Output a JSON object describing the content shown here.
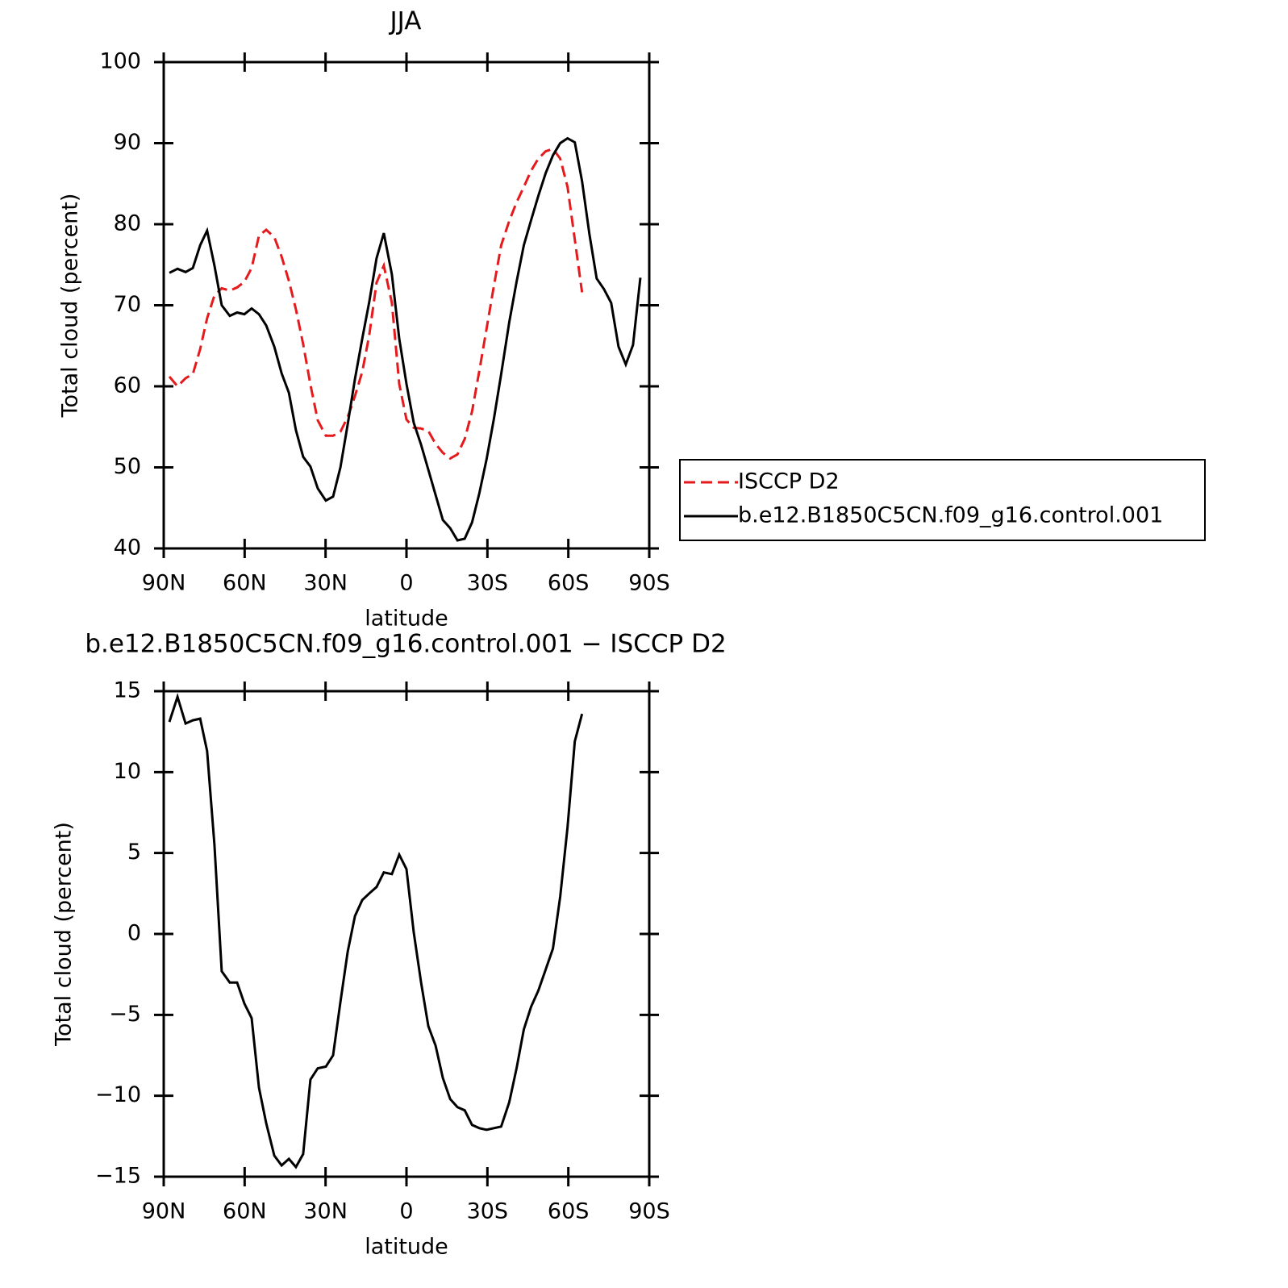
{
  "chart_data": [
    {
      "type": "line",
      "title": "JJA",
      "x_label": "latitude",
      "y_label": "Total cloud (percent)",
      "xlim": [
        90,
        -90
      ],
      "xticks": [
        {
          "value": 90,
          "label": "90N"
        },
        {
          "value": 60,
          "label": "60N"
        },
        {
          "value": 30,
          "label": "30N"
        },
        0,
        {
          "value": -30,
          "label": "30S"
        },
        {
          "value": -60,
          "label": "60S"
        },
        {
          "value": -90,
          "label": "90S"
        }
      ],
      "ylim": [
        40,
        100
      ],
      "yticks": [
        40,
        50,
        60,
        70,
        80,
        90,
        100
      ],
      "legend": "right",
      "x": [
        87.9,
        84.9,
        81.9,
        79.2,
        76.5,
        73.9,
        71.2,
        68.5,
        65.5,
        62.8,
        60.1,
        57.4,
        54.7,
        52.0,
        49.0,
        46.3,
        43.6,
        41.0,
        38.3,
        35.6,
        32.9,
        29.9,
        27.2,
        24.5,
        21.8,
        19.1,
        16.4,
        13.8,
        11.1,
        8.4,
        5.4,
        2.7,
        0.0,
        -2.7,
        -5.4,
        -8.1,
        -10.8,
        -13.5,
        -16.2,
        -18.9,
        -21.6,
        -24.3,
        -27.0,
        -29.7,
        -32.4,
        -35.1,
        -38.1,
        -40.8,
        -43.5,
        -46.2,
        -48.9,
        -51.6,
        -54.3,
        -57.0,
        -59.7,
        -62.4,
        -65.1,
        -67.8,
        -70.5,
        -73.2,
        -75.9,
        -78.6,
        -81.3,
        -84.0,
        -86.7
      ],
      "series": [
        {
          "name": "ISCCP D2",
          "color": "#e41a1c",
          "dashed": true,
          "values": [
            61.2,
            60.0,
            61.0,
            61.5,
            64.6,
            68.4,
            71.2,
            72.1,
            71.8,
            72.2,
            72.9,
            74.6,
            78.6,
            79.3,
            78.4,
            76.0,
            73.0,
            69.5,
            65.2,
            60.2,
            55.8,
            53.9,
            53.9,
            54.4,
            56.2,
            58.8,
            61.8,
            66.3,
            72.8,
            74.9,
            70.3,
            60.3,
            55.9,
            54.9,
            54.8,
            54.5,
            52.9,
            51.8,
            51.1,
            51.6,
            53.5,
            56.9,
            61.9,
            67.1,
            72.4,
            77.4,
            80.4,
            82.7,
            84.6,
            86.6,
            88.1,
            89.0,
            89.3,
            88.1,
            84.6,
            78.1,
            71.6,
            null,
            null,
            null,
            null,
            null,
            null,
            null,
            null
          ]
        },
        {
          "name": "b.e12.B1850C5CN.f09_g16.control.001",
          "color": "#000000",
          "dashed": false,
          "values": [
            74.0,
            74.5,
            74.1,
            74.6,
            77.4,
            79.2,
            74.9,
            70.0,
            68.7,
            69.1,
            68.9,
            69.6,
            68.9,
            67.5,
            64.9,
            61.6,
            59.2,
            54.6,
            51.3,
            50.1,
            47.4,
            45.9,
            46.4,
            50.0,
            55.3,
            60.9,
            65.9,
            70.4,
            75.8,
            78.9,
            73.8,
            65.9,
            60.3,
            55.5,
            52.8,
            49.7,
            46.6,
            43.5,
            42.5,
            41.0,
            41.2,
            43.2,
            46.8,
            51.0,
            56.0,
            61.5,
            67.9,
            72.9,
            77.4,
            80.5,
            83.5,
            86.3,
            88.5,
            90.0,
            90.6,
            90.1,
            85.3,
            78.8,
            73.3,
            72.0,
            70.3,
            64.9,
            62.7,
            65.1,
            73.4
          ]
        }
      ]
    },
    {
      "type": "line",
      "title": "b.e12.B1850C5CN.f09_g16.control.001 − ISCCP D2",
      "x_label": "latitude",
      "y_label": "Total cloud (percent)",
      "xlim": [
        90,
        -90
      ],
      "xticks": [
        {
          "value": 90,
          "label": "90N"
        },
        {
          "value": 60,
          "label": "60N"
        },
        {
          "value": 30,
          "label": "30N"
        },
        0,
        {
          "value": -30,
          "label": "30S"
        },
        {
          "value": -60,
          "label": "60S"
        },
        {
          "value": -90,
          "label": "90S"
        }
      ],
      "ylim": [
        -15,
        15
      ],
      "yticks": [
        {
          "value": -15,
          "label": "−15"
        },
        {
          "value": -10,
          "label": "−10"
        },
        {
          "value": -5,
          "label": "−5"
        },
        0,
        5,
        10,
        15
      ],
      "x": [
        87.9,
        84.9,
        81.9,
        79.2,
        76.5,
        73.9,
        71.2,
        68.5,
        65.5,
        62.8,
        60.1,
        57.4,
        54.7,
        52.0,
        49.0,
        46.3,
        43.6,
        41.0,
        38.3,
        35.6,
        32.9,
        29.9,
        27.2,
        24.5,
        21.8,
        19.1,
        16.4,
        13.8,
        11.1,
        8.4,
        5.4,
        2.7,
        0.0,
        -2.7,
        -5.4,
        -8.1,
        -10.8,
        -13.5,
        -16.2,
        -18.9,
        -21.6,
        -24.3,
        -27.0,
        -29.7,
        -32.4,
        -35.1,
        -38.1,
        -40.8,
        -43.5,
        -46.2,
        -48.9,
        -51.6,
        -54.3,
        -57.0,
        -59.7,
        -62.4,
        -65.1
      ],
      "series": [
        {
          "color": "#000000",
          "dashed": false,
          "values": [
            13.1,
            14.65,
            13.0,
            13.2,
            13.3,
            11.3,
            5.5,
            -2.3,
            -3.0,
            -3.0,
            -4.3,
            -5.2,
            -9.5,
            -11.7,
            -13.7,
            -14.3,
            -13.9,
            -14.4,
            -13.6,
            -9.0,
            -8.3,
            -8.2,
            -7.5,
            -4.2,
            -1.1,
            1.1,
            2.1,
            2.5,
            2.9,
            3.8,
            3.7,
            4.9,
            4.0,
            0.1,
            -3.0,
            -5.7,
            -6.9,
            -8.9,
            -10.2,
            -10.7,
            -10.9,
            -11.8,
            -12.0,
            -12.1,
            -12.0,
            -11.9,
            -10.4,
            -8.3,
            -5.9,
            -4.5,
            -3.5,
            -2.2,
            -0.9,
            2.3,
            6.6,
            11.9,
            13.6
          ]
        }
      ]
    }
  ]
}
